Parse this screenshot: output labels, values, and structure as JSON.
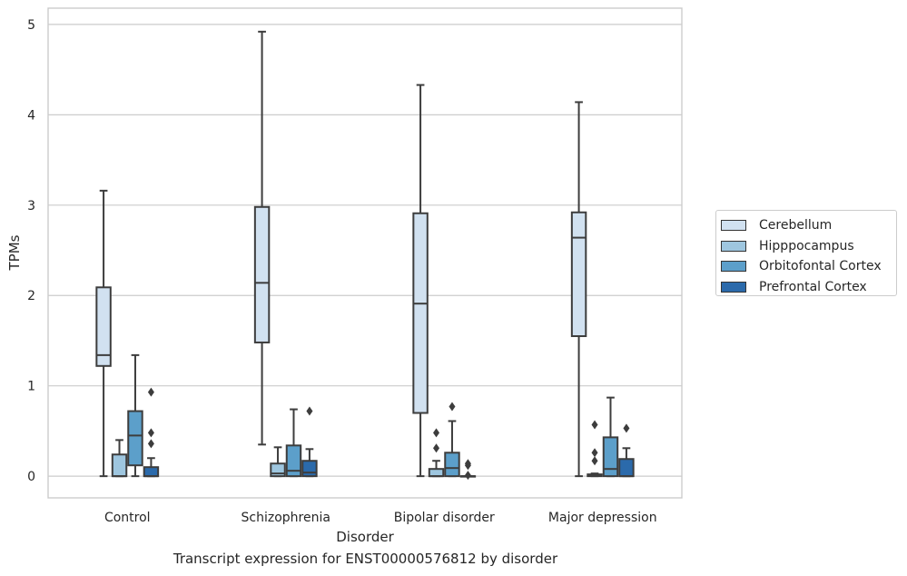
{
  "chart_data": {
    "type": "box",
    "title": "Transcript expression for ENST00000576812 by disorder",
    "xlabel": "Disorder",
    "ylabel": "TPMs",
    "ylim": [
      -0.24,
      5.18
    ],
    "yticks": [
      0,
      1,
      2,
      3,
      4,
      5
    ],
    "grid": true,
    "legend_placement": "right",
    "categories": [
      "Control",
      "Schizophrenia",
      "Bipolar disorder",
      "Major depression"
    ],
    "series": [
      {
        "name": "Cerebellum",
        "color": "#d1e1f0",
        "boxes": [
          {
            "whisker_low": 0.0,
            "q1": 1.22,
            "median": 1.34,
            "q3": 2.09,
            "whisker_high": 3.16,
            "outliers": []
          },
          {
            "whisker_low": 0.35,
            "q1": 1.48,
            "median": 2.14,
            "q3": 2.98,
            "whisker_high": 4.92,
            "outliers": []
          },
          {
            "whisker_low": 0.0,
            "q1": 0.7,
            "median": 1.91,
            "q3": 2.91,
            "whisker_high": 4.33,
            "outliers": []
          },
          {
            "whisker_low": 0.0,
            "q1": 1.55,
            "median": 2.64,
            "q3": 2.92,
            "whisker_high": 4.14,
            "outliers": []
          }
        ]
      },
      {
        "name": "Hipppocampus",
        "color": "#9ec6df",
        "boxes": [
          {
            "whisker_low": 0.0,
            "q1": 0.0,
            "median": 0.0,
            "q3": 0.24,
            "whisker_high": 0.4,
            "outliers": []
          },
          {
            "whisker_low": 0.0,
            "q1": 0.0,
            "median": 0.03,
            "q3": 0.14,
            "whisker_high": 0.32,
            "outliers": []
          },
          {
            "whisker_low": 0.0,
            "q1": 0.0,
            "median": 0.0,
            "q3": 0.08,
            "whisker_high": 0.17,
            "outliers": [
              0.31,
              0.48
            ]
          },
          {
            "whisker_low": 0.0,
            "q1": 0.0,
            "median": 0.01,
            "q3": 0.02,
            "whisker_high": 0.03,
            "outliers": [
              0.17,
              0.26,
              0.57
            ]
          }
        ]
      },
      {
        "name": "Orbitofontal Cortex",
        "color": "#5c9fca",
        "boxes": [
          {
            "whisker_low": 0.0,
            "q1": 0.12,
            "median": 0.45,
            "q3": 0.72,
            "whisker_high": 1.34,
            "outliers": []
          },
          {
            "whisker_low": 0.0,
            "q1": 0.0,
            "median": 0.06,
            "q3": 0.34,
            "whisker_high": 0.74,
            "outliers": []
          },
          {
            "whisker_low": 0.0,
            "q1": 0.0,
            "median": 0.09,
            "q3": 0.26,
            "whisker_high": 0.61,
            "outliers": [
              0.77
            ]
          },
          {
            "whisker_low": 0.0,
            "q1": 0.0,
            "median": 0.08,
            "q3": 0.43,
            "whisker_high": 0.87,
            "outliers": []
          }
        ]
      },
      {
        "name": "Prefrontal Cortex",
        "color": "#2b6aab",
        "boxes": [
          {
            "whisker_low": 0.0,
            "q1": 0.0,
            "median": 0.0,
            "q3": 0.1,
            "whisker_high": 0.2,
            "outliers": [
              0.36,
              0.48,
              0.93
            ]
          },
          {
            "whisker_low": 0.0,
            "q1": 0.0,
            "median": 0.04,
            "q3": 0.17,
            "whisker_high": 0.3,
            "outliers": [
              0.72
            ]
          },
          {
            "whisker_low": 0.0,
            "q1": 0.0,
            "median": 0.0,
            "q3": 0.0,
            "whisker_high": 0.0,
            "outliers": [
              0.01,
              0.12,
              0.14
            ]
          },
          {
            "whisker_low": 0.0,
            "q1": 0.0,
            "median": 0.0,
            "q3": 0.19,
            "whisker_high": 0.31,
            "outliers": [
              0.53
            ]
          }
        ]
      }
    ]
  }
}
